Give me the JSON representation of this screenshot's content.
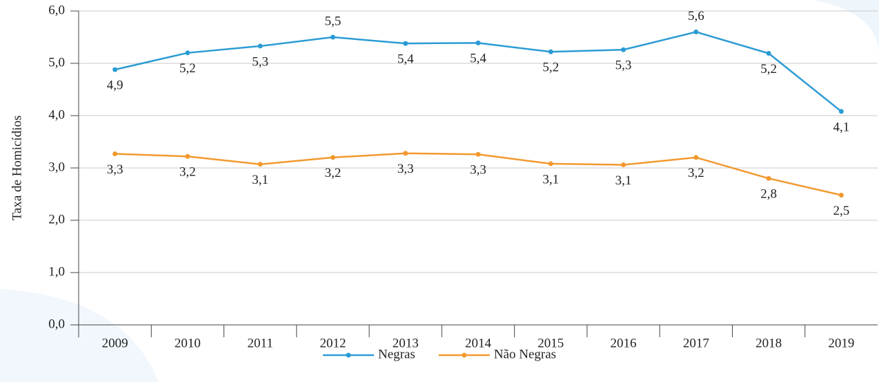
{
  "chart_data": {
    "type": "line",
    "y_label": "Taxa de Homicídios",
    "categories": [
      "2009",
      "2010",
      "2011",
      "2012",
      "2013",
      "2014",
      "2015",
      "2016",
      "2017",
      "2018",
      "2019"
    ],
    "series": [
      {
        "name": "Negras",
        "color": "#2b9bd3",
        "values": [
          4.88,
          5.2,
          5.33,
          5.5,
          5.38,
          5.39,
          5.22,
          5.26,
          5.6,
          5.19,
          4.08
        ],
        "value_labels": [
          "4,9",
          "5,2",
          "5,3",
          "5,5",
          "5,4",
          "5,4",
          "5,2",
          "5,3",
          "5,6",
          "5,2",
          "4,1"
        ]
      },
      {
        "name": "Não Negras",
        "color": "#f2992e",
        "values": [
          3.27,
          3.22,
          3.07,
          3.2,
          3.28,
          3.26,
          3.08,
          3.06,
          3.2,
          2.8,
          2.48
        ],
        "value_labels": [
          "3,3",
          "3,2",
          "3,1",
          "3,2",
          "3,3",
          "3,3",
          "3,1",
          "3,1",
          "3,2",
          "2,8",
          "2,5"
        ]
      }
    ],
    "ylim": [
      0,
      6
    ],
    "yticks": [
      {
        "value": 0,
        "label": "0,0"
      },
      {
        "value": 1,
        "label": "1,0"
      },
      {
        "value": 2,
        "label": "2,0"
      },
      {
        "value": 3,
        "label": "3,0"
      },
      {
        "value": 4,
        "label": "4,0"
      },
      {
        "value": 5,
        "label": "5,0"
      },
      {
        "value": 6,
        "label": "6,0"
      }
    ],
    "grid": true,
    "legend": "bottom"
  }
}
